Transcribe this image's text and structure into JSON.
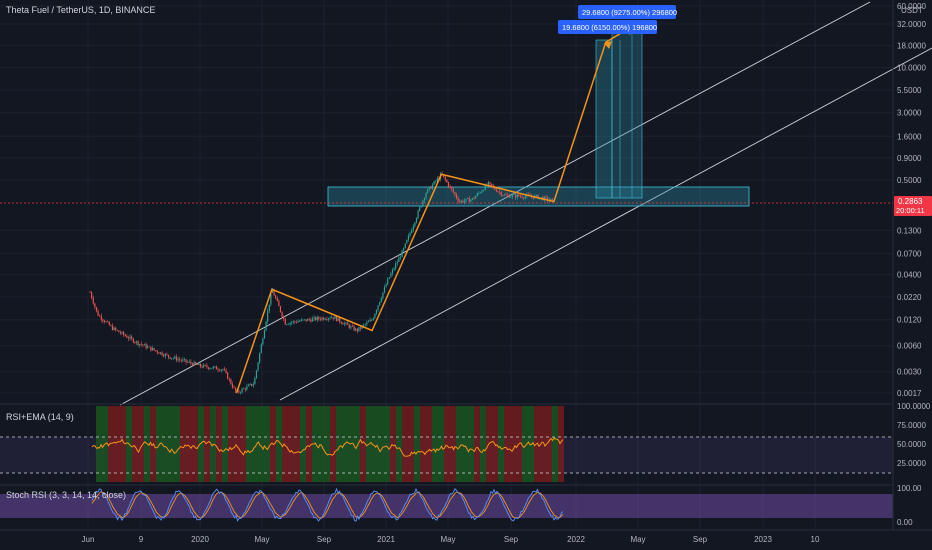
{
  "header": {
    "symbol_title": "Theta Fuel / TetherUS, 1D, BINANCE",
    "currency": "USDT"
  },
  "price_badge": {
    "price": "0.2863",
    "countdown": "20:00:11"
  },
  "callouts": [
    {
      "text": "29.6800 (9275.00%) 296800"
    },
    {
      "text": "19.6800 (6150.00%) 196800"
    }
  ],
  "indicators": [
    {
      "label": "RSI+EMA (14, 9)"
    },
    {
      "label": "Stoch RSI (3, 3, 14, 14, close)"
    }
  ],
  "colors": {
    "background": "#131722",
    "candle_up": "#26a69a",
    "candle_down": "#ef5350",
    "pattern_line": "#f7931a",
    "channel_line": "#d1d4dc",
    "zone_fill": "#2a8fa8",
    "callout_fill": "#2962ff",
    "badge_fill": "#f23645",
    "rsi_line": "#f7931a",
    "stoch_k": "#5b8ff9",
    "stoch_d": "#f7931a",
    "stoch_band": "#7e57c2"
  },
  "chart_data": [
    {
      "type": "line",
      "subtype": "candlestick",
      "title": "Theta Fuel / TetherUS, 1D, BINANCE",
      "y_scale": "log",
      "y_unit": "USDT",
      "y_ticks": [
        "60.0000",
        "32.0000",
        "18.0000",
        "10.0000",
        "5.5000",
        "3.0000",
        "1.6000",
        "0.9000",
        "0.5000",
        "0.1300",
        "0.0700",
        "0.0400",
        "0.0220",
        "0.0120",
        "0.0060",
        "0.0030",
        "0.0017"
      ],
      "x_ticks": [
        "Jun",
        "9",
        "2020",
        "May",
        "Sep",
        "2021",
        "May",
        "Sep",
        "2022",
        "May",
        "Sep",
        "2023",
        "10"
      ],
      "last_price": 0.2863,
      "series": [
        {
          "values_approx": [
            [
              "2019-06-01",
              0.025
            ],
            [
              "2019-06-15",
              0.014
            ],
            [
              "2019-07-15",
              0.0095
            ],
            [
              "2019-09-01",
              0.0065
            ],
            [
              "2019-11-01",
              0.0045
            ],
            [
              "2020-01-01",
              0.0035
            ],
            [
              "2020-02-15",
              0.0032
            ],
            [
              "2020-03-12",
              0.0017
            ],
            [
              "2020-04-15",
              0.0022
            ],
            [
              "2020-05-20",
              0.027
            ],
            [
              "2020-06-15",
              0.011
            ],
            [
              "2020-08-01",
              0.012
            ],
            [
              "2020-09-15",
              0.013
            ],
            [
              "2020-11-01",
              0.009
            ],
            [
              "2020-12-01",
              0.012
            ],
            [
              "2021-01-01",
              0.035
            ],
            [
              "2021-02-01",
              0.08
            ],
            [
              "2021-03-15",
              0.35
            ],
            [
              "2021-04-15",
              0.58
            ],
            [
              "2021-05-20",
              0.28
            ],
            [
              "2021-06-15",
              0.3
            ],
            [
              "2021-07-15",
              0.45
            ],
            [
              "2021-08-15",
              0.33
            ],
            [
              "2021-10-15",
              0.32
            ],
            [
              "2021-11-20",
              0.2863
            ]
          ]
        }
      ],
      "annotations": {
        "pattern_points": [
          [
            "2020-03-12",
            0.0017
          ],
          [
            "2020-05-20",
            0.027
          ],
          [
            "2020-12-01",
            0.009
          ],
          [
            "2021-04-15",
            0.58
          ],
          [
            "2021-11-20",
            0.28
          ],
          [
            "2022-03-01",
            19.68
          ],
          [
            "2022-04-20",
            29.68
          ]
        ],
        "zone": {
          "from": "2021-11-01",
          "to": "2023-02-01",
          "low": 0.28,
          "high": 0.42
        },
        "projections": [
          {
            "label": "19.6800 (6150.00%) 196800",
            "target": 19.68
          },
          {
            "label": "29.6800 (9275.00%) 296800",
            "target": 29.68
          }
        ]
      }
    },
    {
      "type": "line",
      "title": "RSI+EMA (14, 9)",
      "y_ticks": [
        "100.0000",
        "75.0000",
        "50.0000",
        "25.0000"
      ],
      "levels": [
        70,
        30
      ]
    },
    {
      "type": "line",
      "title": "Stoch RSI (3, 3, 14, 14, close)",
      "y_ticks": [
        "100.00",
        "0.00"
      ],
      "levels": [
        80,
        20
      ]
    }
  ]
}
